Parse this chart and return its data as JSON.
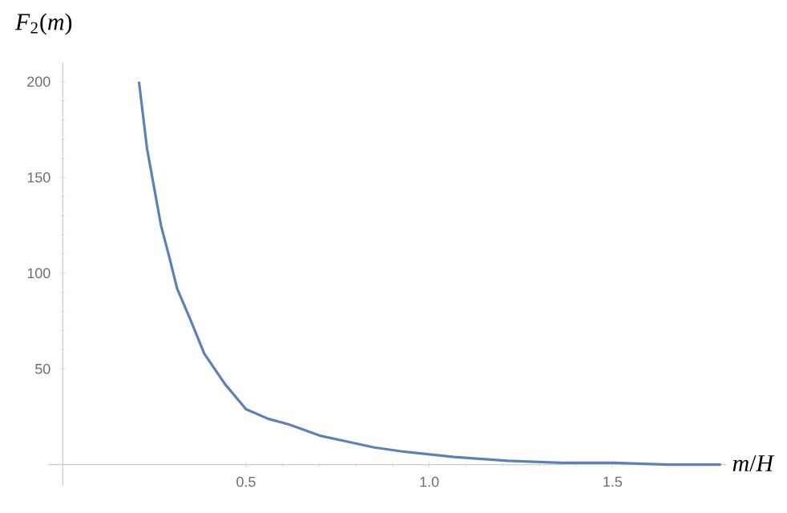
{
  "chart_data": {
    "type": "line",
    "xlabel": "*m*/*H*",
    "ylabel": "*F*$_{2}$(*m*)",
    "x": [
      0.208,
      0.23,
      0.268,
      0.29,
      0.312,
      0.35,
      0.386,
      0.443,
      0.5,
      0.56,
      0.617,
      0.705,
      0.777,
      0.85,
      0.923,
      1.068,
      1.214,
      1.36,
      1.505,
      1.65,
      1.796
    ],
    "series": [
      {
        "color": "#5e81b5",
        "values": [
          200,
          165,
          125,
          109,
          92,
          75,
          58,
          42,
          29,
          24,
          21,
          15,
          12,
          9,
          7,
          4,
          2,
          1,
          1,
          0,
          0
        ]
      }
    ],
    "xlim": [
      -0.04,
      1.81
    ],
    "ylim": [
      -11,
      210
    ],
    "xticks": [
      0.5,
      {
        "value": 1,
        "label": "1.0"
      },
      1.5
    ],
    "yticks": [
      50,
      100,
      150,
      200
    ],
    "grid": false,
    "marker": "none",
    "line_style": "solid"
  }
}
